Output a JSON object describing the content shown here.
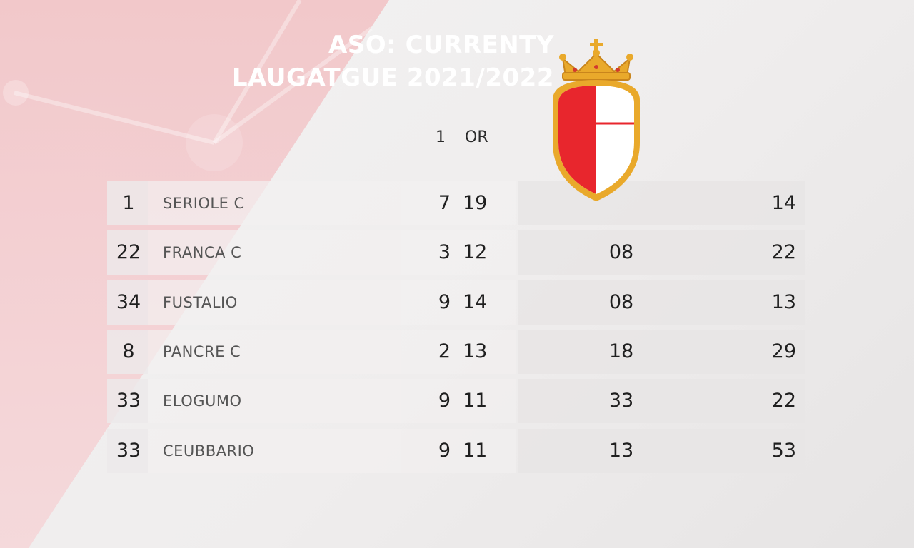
{
  "title": {
    "line1": "ASO: CURRENTY",
    "line2": "LAUGATGUE 2021/2022"
  },
  "columns": {
    "col1": "1",
    "col2": "OR"
  },
  "colors": {
    "accent": "#e8262d",
    "crest_gold": "#e9a92b",
    "bg_red": "#f2c6c8"
  },
  "crest": {
    "icon": "crowned-shield-crest"
  },
  "rows": [
    {
      "rank": "1",
      "team": "SERIOLE C",
      "v1": "7",
      "v2": "19",
      "v3": "",
      "v4": "14"
    },
    {
      "rank": "22",
      "team": "FRANCA C",
      "v1": "3",
      "v2": "12",
      "v3": "08",
      "v4": "22"
    },
    {
      "rank": "34",
      "team": "FUSTALIO",
      "v1": "9",
      "v2": "14",
      "v3": "08",
      "v4": "13"
    },
    {
      "rank": "8",
      "team": "PANCRE C",
      "v1": "2",
      "v2": "13",
      "v3": "18",
      "v4": "29"
    },
    {
      "rank": "33",
      "team": "ELOGUMO",
      "v1": "9",
      "v2": "11",
      "v3": "33",
      "v4": "22"
    },
    {
      "rank": "33",
      "team": "CEUBBARIO",
      "v1": "9",
      "v2": "11",
      "v3": "13",
      "v4": "53"
    }
  ]
}
